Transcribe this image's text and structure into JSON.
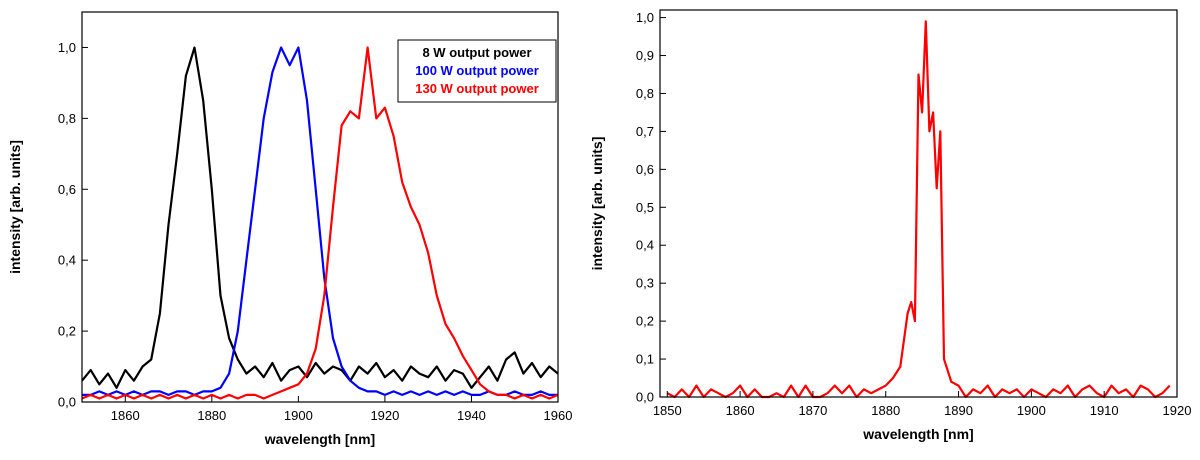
{
  "chart_data": [
    {
      "type": "line",
      "xlabel": "wavelength [nm]",
      "ylabel": "intensity [arb. units]",
      "xlim": [
        1850,
        1960
      ],
      "ylim": [
        0,
        1.1
      ],
      "xticks": [
        1860,
        1880,
        1900,
        1920,
        1940,
        1960
      ],
      "yticks": [
        {
          "value": 0,
          "label": "0,0"
        },
        {
          "value": 0.2,
          "label": "0,2"
        },
        {
          "value": 0.4,
          "label": "0,4"
        },
        {
          "value": 0.6,
          "label": "0,6"
        },
        {
          "value": 0.8,
          "label": "0,8"
        },
        {
          "value": 1.0,
          "label": "1,0"
        }
      ],
      "legend": "upper right",
      "x": [
        1850,
        1852,
        1854,
        1856,
        1858,
        1860,
        1862,
        1864,
        1866,
        1868,
        1870,
        1872,
        1874,
        1876,
        1878,
        1880,
        1882,
        1884,
        1886,
        1888,
        1890,
        1892,
        1894,
        1896,
        1898,
        1900,
        1902,
        1904,
        1906,
        1908,
        1910,
        1912,
        1914,
        1916,
        1918,
        1920,
        1922,
        1924,
        1926,
        1928,
        1930,
        1932,
        1934,
        1936,
        1938,
        1940,
        1942,
        1944,
        1946,
        1948,
        1950,
        1952,
        1954,
        1956,
        1958,
        1960
      ],
      "series": [
        {
          "name": "8 W output power",
          "color": "#000000",
          "values": [
            0.06,
            0.09,
            0.05,
            0.08,
            0.04,
            0.09,
            0.06,
            0.1,
            0.12,
            0.25,
            0.5,
            0.7,
            0.92,
            1.0,
            0.85,
            0.6,
            0.3,
            0.18,
            0.12,
            0.08,
            0.1,
            0.07,
            0.11,
            0.06,
            0.09,
            0.1,
            0.07,
            0.11,
            0.08,
            0.1,
            0.09,
            0.06,
            0.1,
            0.08,
            0.11,
            0.07,
            0.09,
            0.06,
            0.1,
            0.08,
            0.07,
            0.1,
            0.06,
            0.09,
            0.08,
            0.04,
            0.07,
            0.1,
            0.06,
            0.12,
            0.14,
            0.08,
            0.11,
            0.07,
            0.1,
            0.08
          ]
        },
        {
          "name": "100 W output power",
          "color": "#0000ff",
          "values": [
            0.02,
            0.02,
            0.03,
            0.02,
            0.03,
            0.02,
            0.03,
            0.02,
            0.03,
            0.03,
            0.02,
            0.03,
            0.03,
            0.02,
            0.03,
            0.03,
            0.04,
            0.08,
            0.2,
            0.4,
            0.6,
            0.8,
            0.93,
            1.0,
            0.95,
            1.0,
            0.85,
            0.6,
            0.35,
            0.18,
            0.1,
            0.06,
            0.04,
            0.03,
            0.03,
            0.02,
            0.03,
            0.02,
            0.03,
            0.02,
            0.03,
            0.02,
            0.03,
            0.02,
            0.03,
            0.02,
            0.02,
            0.03,
            0.02,
            0.02,
            0.03,
            0.02,
            0.02,
            0.03,
            0.02,
            0.02
          ]
        },
        {
          "name": "130 W output power",
          "color": "#ff0000",
          "values": [
            0.01,
            0.02,
            0.01,
            0.02,
            0.01,
            0.02,
            0.01,
            0.02,
            0.01,
            0.02,
            0.01,
            0.02,
            0.01,
            0.02,
            0.01,
            0.02,
            0.01,
            0.02,
            0.01,
            0.02,
            0.02,
            0.01,
            0.02,
            0.03,
            0.04,
            0.05,
            0.08,
            0.15,
            0.3,
            0.55,
            0.78,
            0.82,
            0.8,
            1.0,
            0.8,
            0.83,
            0.75,
            0.62,
            0.55,
            0.5,
            0.42,
            0.3,
            0.22,
            0.18,
            0.13,
            0.09,
            0.05,
            0.03,
            0.02,
            0.02,
            0.01,
            0.02,
            0.01,
            0.02,
            0.01,
            0.02
          ]
        }
      ]
    },
    {
      "type": "line",
      "xlabel": "wavelength [nm]",
      "ylabel": "intensity [arb. units]",
      "xlim": [
        1849,
        1920
      ],
      "ylim": [
        0,
        1.02
      ],
      "xticks": [
        1850,
        1860,
        1870,
        1880,
        1890,
        1900,
        1910,
        1920
      ],
      "yticks": [
        {
          "value": 0,
          "label": "0,0"
        },
        {
          "value": 0.1,
          "label": "0,1"
        },
        {
          "value": 0.2,
          "label": "0,2"
        },
        {
          "value": 0.3,
          "label": "0,3"
        },
        {
          "value": 0.4,
          "label": "0,4"
        },
        {
          "value": 0.5,
          "label": "0,5"
        },
        {
          "value": 0.6,
          "label": "0,6"
        },
        {
          "value": 0.7,
          "label": "0,7"
        },
        {
          "value": 0.8,
          "label": "0,8"
        },
        {
          "value": 0.9,
          "label": "0,9"
        },
        {
          "value": 1.0,
          "label": "1,0"
        }
      ],
      "x": [
        1850,
        1851,
        1852,
        1853,
        1854,
        1855,
        1856,
        1857,
        1858,
        1859,
        1860,
        1861,
        1862,
        1863,
        1864,
        1865,
        1866,
        1867,
        1868,
        1869,
        1870,
        1871,
        1872,
        1873,
        1874,
        1875,
        1876,
        1877,
        1878,
        1879,
        1880,
        1881,
        1882,
        1883,
        1883.5,
        1884,
        1884.5,
        1885,
        1885.5,
        1886,
        1886.5,
        1887,
        1887.5,
        1888,
        1889,
        1890,
        1891,
        1892,
        1893,
        1894,
        1895,
        1896,
        1897,
        1898,
        1899,
        1900,
        1901,
        1902,
        1903,
        1904,
        1905,
        1906,
        1907,
        1908,
        1909,
        1910,
        1911,
        1912,
        1913,
        1914,
        1915,
        1916,
        1917,
        1918,
        1919
      ],
      "series": [
        {
          "color": "#ff0000",
          "values": [
            0.01,
            0,
            0.02,
            0,
            0.03,
            0,
            0.02,
            0.01,
            0,
            0.01,
            0.03,
            0,
            0.02,
            0,
            0,
            0.01,
            0,
            0.03,
            0,
            0.03,
            0,
            0,
            0.01,
            0.03,
            0.01,
            0.03,
            0,
            0.02,
            0.01,
            0.02,
            0.03,
            0.05,
            0.08,
            0.22,
            0.25,
            0.2,
            0.85,
            0.75,
            0.99,
            0.7,
            0.75,
            0.55,
            0.7,
            0.1,
            0.04,
            0.03,
            0,
            0.02,
            0.01,
            0.03,
            0,
            0.02,
            0.01,
            0.02,
            0,
            0.02,
            0.01,
            0,
            0.02,
            0.01,
            0.03,
            0,
            0.02,
            0.03,
            0.01,
            0,
            0.03,
            0.01,
            0.02,
            0,
            0.03,
            0.02,
            0,
            0.01,
            0.03
          ]
        }
      ]
    }
  ]
}
